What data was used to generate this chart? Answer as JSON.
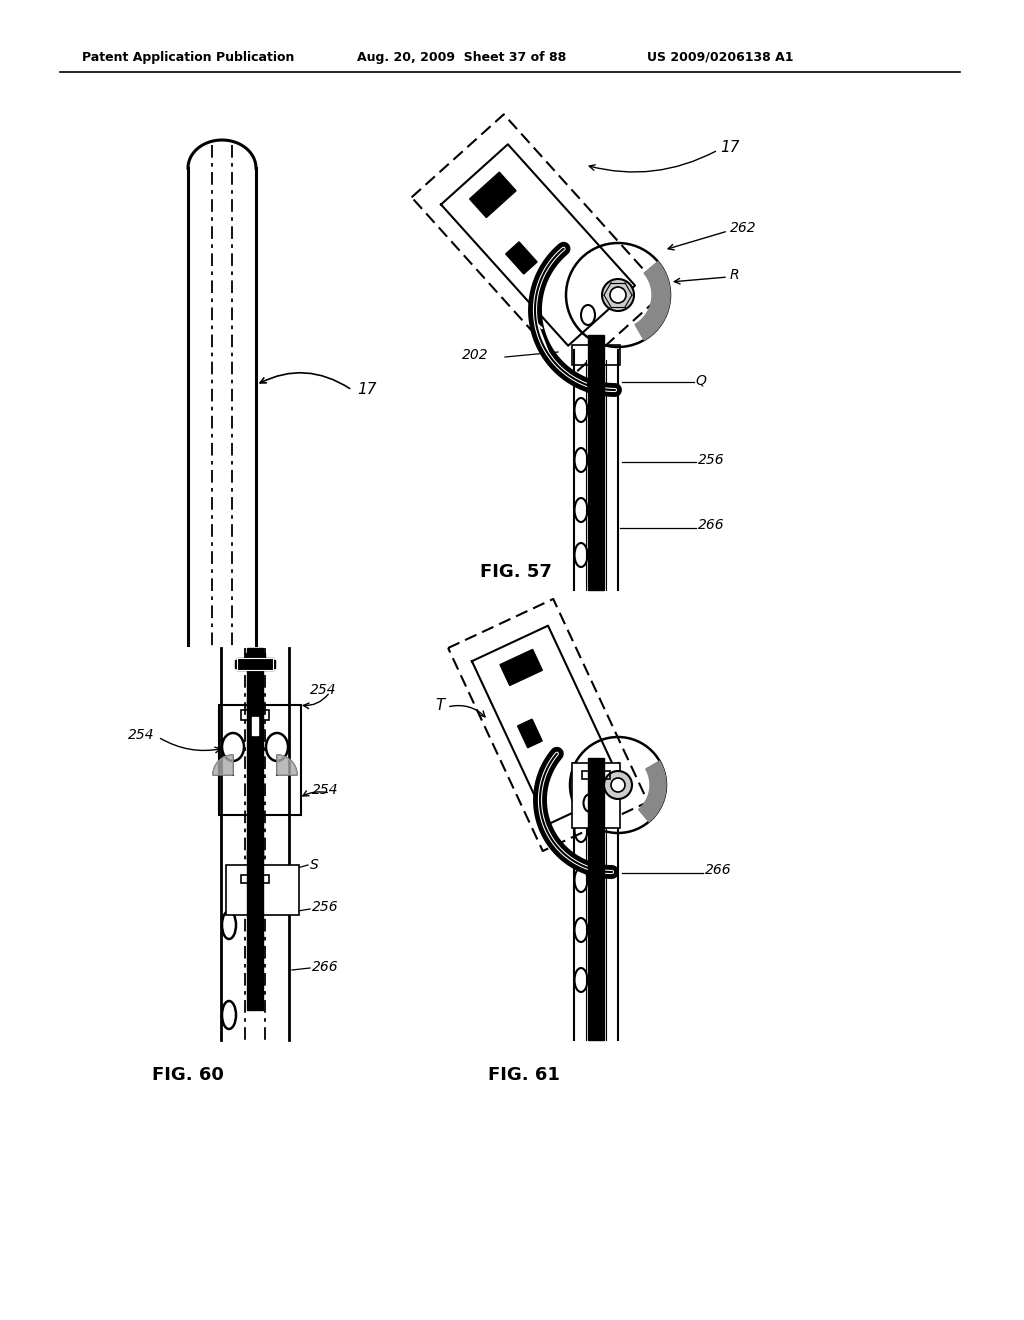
{
  "background_color": "#ffffff",
  "header_left": "Patent Application Publication",
  "header_mid": "Aug. 20, 2009  Sheet 37 of 88",
  "header_right": "US 2009/0206138 A1",
  "fig57_label": "FIG. 57",
  "fig60_label": "FIG. 60",
  "fig61_label": "FIG. 61"
}
